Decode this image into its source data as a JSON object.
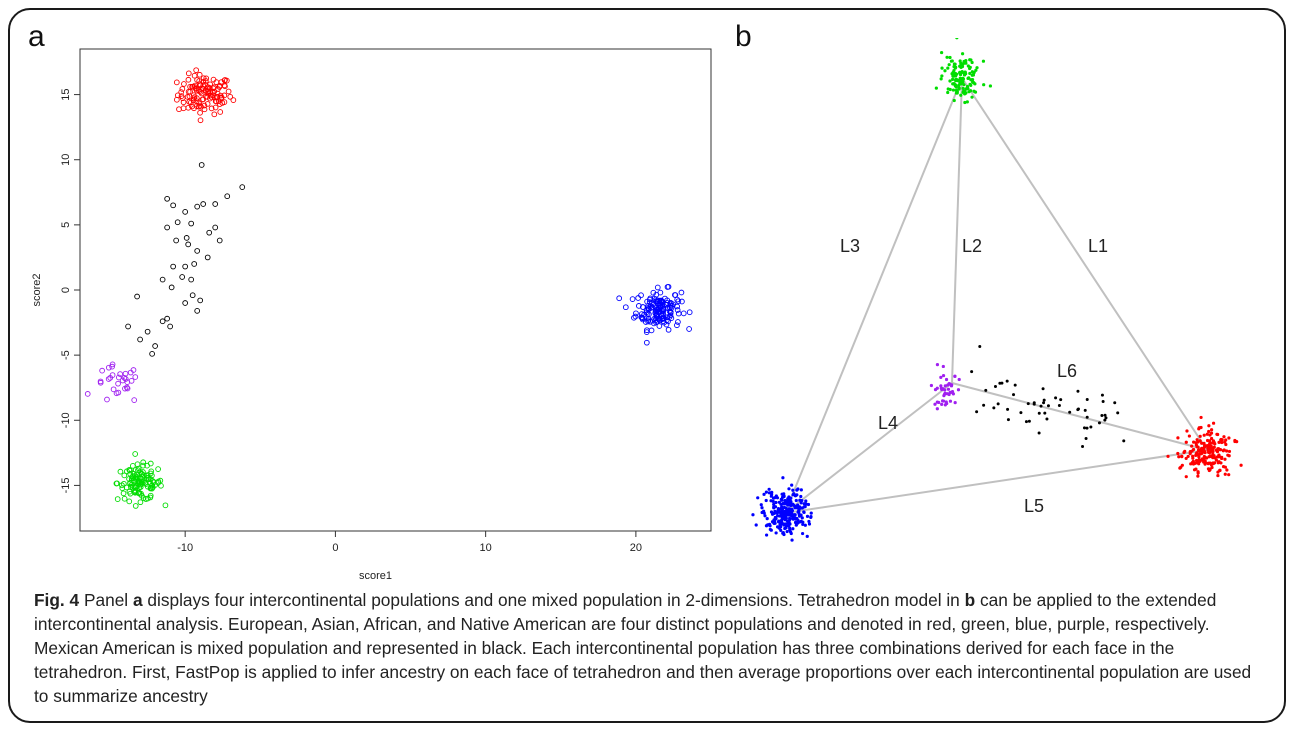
{
  "figure": {
    "panel_a_letter": "a",
    "panel_b_letter": "b",
    "caption": {
      "label": "Fig. 4",
      "t1": " Panel ",
      "ref_a": "a",
      "t2": " displays four intercontinental populations and one mixed population in 2-dimensions. Tetrahedron model in ",
      "ref_b": "b",
      "t3": " can be applied to the extended intercontinental analysis. European, Asian, African, and Native American are four distinct populations and denoted in red, green, blue, purple, respectively. Mexican American is mixed population and represented in black. Each intercontinental population has three combinations derived for each face in the tetrahedron. First, FastPop is applied to infer ancestry on each face of tetrahedron and then average proportions over each intercontinental population are used to summarize ancestry"
    }
  },
  "colors": {
    "red": "#ff0000",
    "green": "#00dd00",
    "blue": "#0000ff",
    "purple": "#a020f0",
    "black": "#000000",
    "edge": "#c0c0c0"
  },
  "chart_data": [
    {
      "type": "scatter",
      "panel": "a",
      "xlabel": "score1",
      "ylabel": "score2",
      "xlim": [
        -17,
        25
      ],
      "ylim": [
        -18.5,
        18.5
      ],
      "xticks": [
        -10,
        0,
        10,
        20
      ],
      "yticks": [
        -15,
        -10,
        -5,
        0,
        5,
        10,
        15
      ],
      "grid": false,
      "marker": "open-circle",
      "clusters": [
        {
          "color": "red",
          "center": [
            -8.7,
            15.0
          ],
          "spread": [
            1.2,
            1.0
          ],
          "count": 120
        },
        {
          "color": "blue",
          "center": [
            21.5,
            -1.5
          ],
          "spread": [
            1.0,
            1.0
          ],
          "count": 150
        },
        {
          "color": "green",
          "center": [
            -13.0,
            -14.8
          ],
          "spread": [
            1.0,
            0.9
          ],
          "count": 120
        },
        {
          "color": "purple",
          "center": [
            -14.5,
            -7.3
          ],
          "spread": [
            1.0,
            1.0
          ],
          "count": 30
        }
      ],
      "mixed_points_black": [
        [
          -11.2,
          7.0
        ],
        [
          -10.8,
          6.5
        ],
        [
          -10.0,
          6.0
        ],
        [
          -9.2,
          6.4
        ],
        [
          -8.8,
          6.6
        ],
        [
          -8.0,
          6.6
        ],
        [
          -7.2,
          7.2
        ],
        [
          -6.2,
          7.9
        ],
        [
          -8.9,
          9.6
        ],
        [
          -10.5,
          5.2
        ],
        [
          -9.6,
          5.1
        ],
        [
          -9.9,
          4.0
        ],
        [
          -11.2,
          4.8
        ],
        [
          -10.6,
          3.8
        ],
        [
          -9.8,
          3.5
        ],
        [
          -9.2,
          3.0
        ],
        [
          -8.4,
          4.4
        ],
        [
          -8.0,
          4.8
        ],
        [
          -7.7,
          3.8
        ],
        [
          -8.5,
          2.5
        ],
        [
          -9.4,
          2.0
        ],
        [
          -10.0,
          1.8
        ],
        [
          -10.8,
          1.8
        ],
        [
          -10.2,
          1.0
        ],
        [
          -9.6,
          0.8
        ],
        [
          -11.5,
          0.8
        ],
        [
          -10.9,
          0.2
        ],
        [
          -9.5,
          -0.4
        ],
        [
          -9.0,
          -0.8
        ],
        [
          -10.0,
          -1.0
        ],
        [
          -9.2,
          -1.6
        ],
        [
          -11.2,
          -2.2
        ],
        [
          -11.5,
          -2.4
        ],
        [
          -11.0,
          -2.8
        ],
        [
          -12.5,
          -3.2
        ],
        [
          -13.0,
          -3.8
        ],
        [
          -13.8,
          -2.8
        ],
        [
          -13.2,
          -0.5
        ],
        [
          -12.0,
          -4.3
        ],
        [
          -12.2,
          -4.9
        ]
      ]
    },
    {
      "type": "scatter",
      "panel": "b",
      "title": "",
      "edge_labels": [
        "L1",
        "L2",
        "L3",
        "L4",
        "L5",
        "L6"
      ],
      "marker": "filled-dot",
      "vertices": {
        "green": "apex",
        "purple": "inner",
        "blue": "bottom-left",
        "red": "right"
      }
    }
  ]
}
